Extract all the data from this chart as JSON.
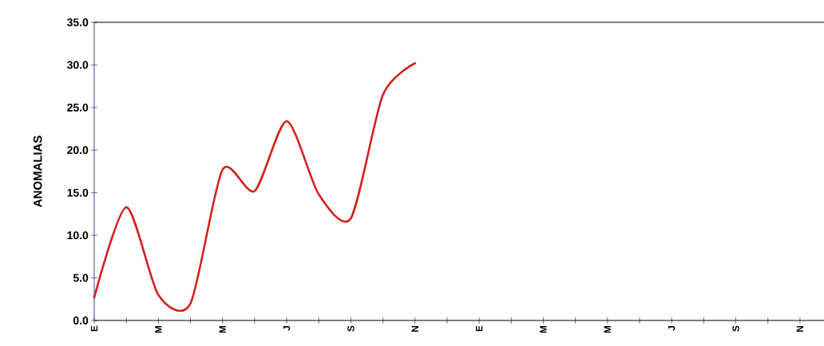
{
  "chart_data": {
    "type": "line",
    "ylabel": "ANOMALIAS",
    "categories": [
      "E",
      null,
      "M",
      null,
      "M",
      null,
      "J",
      null,
      "S",
      null,
      "N",
      null,
      "E",
      null,
      "M",
      null,
      "M",
      null,
      "J",
      null,
      "S",
      null,
      "N"
    ],
    "ylim": [
      0,
      35
    ],
    "yticks": [
      {
        "value": 0,
        "label": "0.0"
      },
      {
        "value": 5,
        "label": "5.0"
      },
      {
        "value": 10,
        "label": "10.0"
      },
      {
        "value": 15,
        "label": "15.0"
      },
      {
        "value": 20,
        "label": "20.0"
      },
      {
        "value": 25,
        "label": "25.0"
      },
      {
        "value": 30,
        "label": "30.0"
      },
      {
        "value": 35,
        "label": "35.0"
      }
    ],
    "marker": "none",
    "line_style": "solid",
    "series": [
      {
        "color": "#d42020",
        "values": [
          2.7,
          13.3,
          3.0,
          2.0,
          17.7,
          15.2,
          23.4,
          14.8,
          12.0,
          26.5,
          30.2,
          null,
          null,
          null,
          null,
          null,
          null,
          null,
          null,
          null,
          null,
          null,
          null
        ]
      }
    ]
  }
}
